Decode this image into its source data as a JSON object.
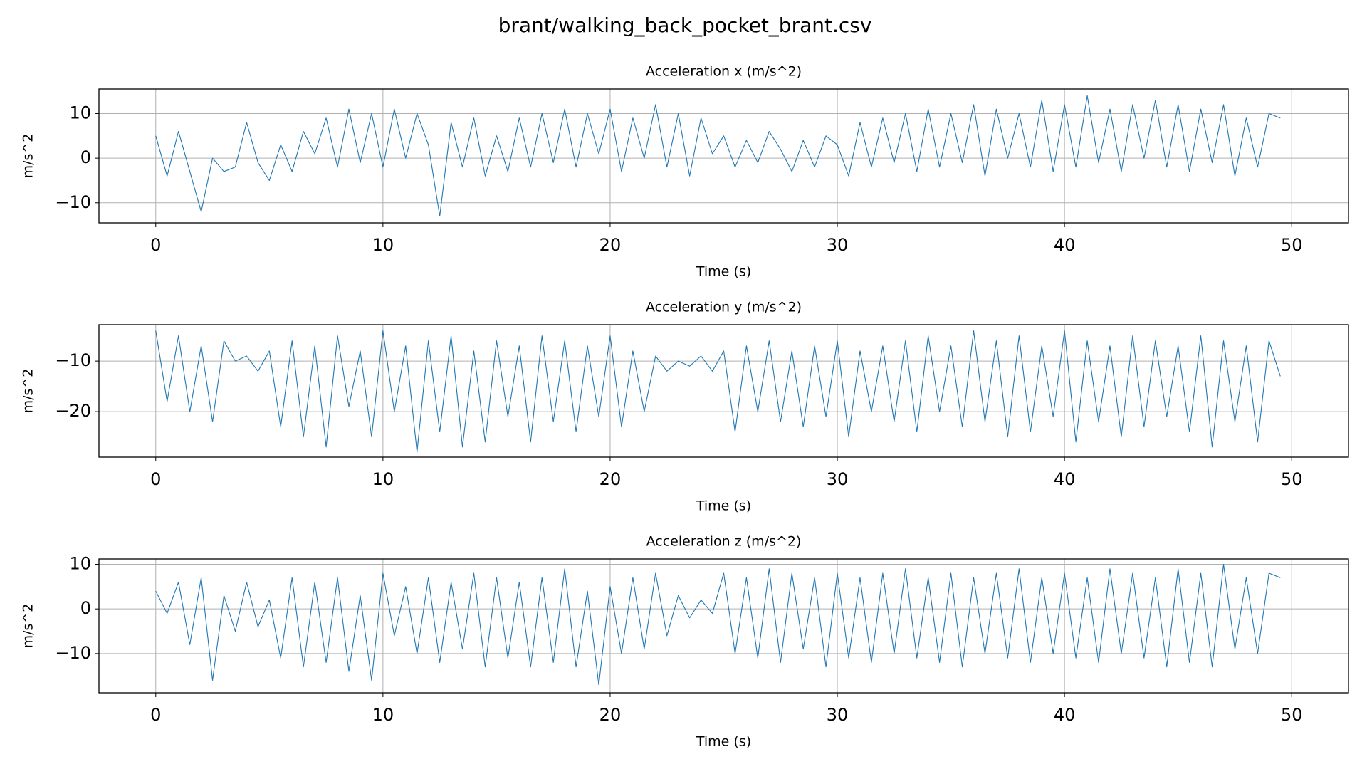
{
  "title": "brant/walking_back_pocket_brant.csv",
  "chart_data": [
    {
      "type": "line",
      "title": "Acceleration x (m/s^2)",
      "x_label": "Time (s)",
      "y_label": "m/s^2",
      "x": [
        0,
        0.5,
        1,
        1.5,
        2,
        2.5,
        3,
        3.5,
        4,
        4.5,
        5,
        5.5,
        6,
        6.5,
        7,
        7.5,
        8,
        8.5,
        9,
        9.5,
        10,
        10.5,
        11,
        11.5,
        12,
        12.5,
        13,
        13.5,
        14,
        14.5,
        15,
        15.5,
        16,
        16.5,
        17,
        17.5,
        18,
        18.5,
        19,
        19.5,
        20,
        20.5,
        21,
        21.5,
        22,
        22.5,
        23,
        23.5,
        24,
        24.5,
        25,
        25.5,
        26,
        26.5,
        27,
        27.5,
        28,
        28.5,
        29,
        29.5,
        30,
        30.5,
        31,
        31.5,
        32,
        32.5,
        33,
        33.5,
        34,
        34.5,
        35,
        35.5,
        36,
        36.5,
        37,
        37.5,
        38,
        38.5,
        39,
        39.5,
        40,
        40.5,
        41,
        41.5,
        42,
        42.5,
        43,
        43.5,
        44,
        44.5,
        45,
        45.5,
        46,
        46.5,
        47,
        47.5,
        48,
        48.5,
        49,
        49.5
      ],
      "series": [
        {
          "color": "#1f77b4",
          "values": [
            5,
            -4,
            6,
            -3,
            -12,
            0,
            -3,
            -2,
            8,
            -1,
            -5,
            3,
            -3,
            6,
            1,
            9,
            -2,
            11,
            -1,
            10,
            -2,
            11,
            0,
            10,
            3,
            -13,
            8,
            -2,
            9,
            -4,
            5,
            -3,
            9,
            -2,
            10,
            -1,
            11,
            -2,
            10,
            1,
            11,
            -3,
            9,
            0,
            12,
            -2,
            10,
            -4,
            9,
            1,
            5,
            -2,
            4,
            -1,
            6,
            2,
            -3,
            4,
            -2,
            5,
            3,
            -4,
            8,
            -2,
            9,
            -1,
            10,
            -3,
            11,
            -2,
            10,
            -1,
            12,
            -4,
            11,
            0,
            10,
            -2,
            13,
            -3,
            12,
            -2,
            14,
            -1,
            11,
            -3,
            12,
            0,
            13,
            -2,
            12,
            -3,
            11,
            -1,
            12,
            -4,
            9,
            -2,
            10,
            9
          ]
        }
      ],
      "xlim": [
        -2.5,
        52.5
      ],
      "xticks": [
        0,
        10,
        20,
        30,
        40,
        50
      ],
      "ylim": [
        -14.5,
        15.5
      ],
      "yticks": [
        {
          "value": -10,
          "label": "−10"
        },
        0,
        10
      ],
      "grid": true
    },
    {
      "type": "line",
      "title": "Acceleration y (m/s^2)",
      "x_label": "Time (s)",
      "y_label": "m/s^2",
      "x": [
        0,
        0.5,
        1,
        1.5,
        2,
        2.5,
        3,
        3.5,
        4,
        4.5,
        5,
        5.5,
        6,
        6.5,
        7,
        7.5,
        8,
        8.5,
        9,
        9.5,
        10,
        10.5,
        11,
        11.5,
        12,
        12.5,
        13,
        13.5,
        14,
        14.5,
        15,
        15.5,
        16,
        16.5,
        17,
        17.5,
        18,
        18.5,
        19,
        19.5,
        20,
        20.5,
        21,
        21.5,
        22,
        22.5,
        23,
        23.5,
        24,
        24.5,
        25,
        25.5,
        26,
        26.5,
        27,
        27.5,
        28,
        28.5,
        29,
        29.5,
        30,
        30.5,
        31,
        31.5,
        32,
        32.5,
        33,
        33.5,
        34,
        34.5,
        35,
        35.5,
        36,
        36.5,
        37,
        37.5,
        38,
        38.5,
        39,
        39.5,
        40,
        40.5,
        41,
        41.5,
        42,
        42.5,
        43,
        43.5,
        44,
        44.5,
        45,
        45.5,
        46,
        46.5,
        47,
        47.5,
        48,
        48.5,
        49,
        49.5
      ],
      "series": [
        {
          "color": "#1f77b4",
          "values": [
            -4,
            -18,
            -5,
            -20,
            -7,
            -22,
            -6,
            -10,
            -9,
            -12,
            -8,
            -23,
            -6,
            -25,
            -7,
            -27,
            -5,
            -19,
            -8,
            -25,
            -4,
            -20,
            -7,
            -28,
            -6,
            -24,
            -5,
            -27,
            -8,
            -26,
            -6,
            -21,
            -7,
            -26,
            -5,
            -22,
            -6,
            -24,
            -7,
            -21,
            -5,
            -23,
            -8,
            -20,
            -9,
            -12,
            -10,
            -11,
            -9,
            -12,
            -8,
            -24,
            -7,
            -20,
            -6,
            -22,
            -8,
            -23,
            -7,
            -21,
            -6,
            -25,
            -8,
            -20,
            -7,
            -22,
            -6,
            -24,
            -5,
            -20,
            -7,
            -23,
            -4,
            -22,
            -6,
            -25,
            -5,
            -24,
            -7,
            -21,
            -4,
            -26,
            -6,
            -22,
            -7,
            -25,
            -5,
            -23,
            -6,
            -21,
            -7,
            -24,
            -5,
            -27,
            -6,
            -22,
            -7,
            -26,
            -6,
            -13
          ]
        }
      ],
      "xlim": [
        -2.5,
        52.5
      ],
      "xticks": [
        0,
        10,
        20,
        30,
        40,
        50
      ],
      "ylim": [
        -29,
        -2.8
      ],
      "yticks": [
        {
          "value": -20,
          "label": "−20"
        },
        {
          "value": -10,
          "label": "−10"
        }
      ],
      "grid": true
    },
    {
      "type": "line",
      "title": "Acceleration z (m/s^2)",
      "x_label": "Time (s)",
      "y_label": "m/s^2",
      "x": [
        0,
        0.5,
        1,
        1.5,
        2,
        2.5,
        3,
        3.5,
        4,
        4.5,
        5,
        5.5,
        6,
        6.5,
        7,
        7.5,
        8,
        8.5,
        9,
        9.5,
        10,
        10.5,
        11,
        11.5,
        12,
        12.5,
        13,
        13.5,
        14,
        14.5,
        15,
        15.5,
        16,
        16.5,
        17,
        17.5,
        18,
        18.5,
        19,
        19.5,
        20,
        20.5,
        21,
        21.5,
        22,
        22.5,
        23,
        23.5,
        24,
        24.5,
        25,
        25.5,
        26,
        26.5,
        27,
        27.5,
        28,
        28.5,
        29,
        29.5,
        30,
        30.5,
        31,
        31.5,
        32,
        32.5,
        33,
        33.5,
        34,
        34.5,
        35,
        35.5,
        36,
        36.5,
        37,
        37.5,
        38,
        38.5,
        39,
        39.5,
        40,
        40.5,
        41,
        41.5,
        42,
        42.5,
        43,
        43.5,
        44,
        44.5,
        45,
        45.5,
        46,
        46.5,
        47,
        47.5,
        48,
        48.5,
        49,
        49.5
      ],
      "series": [
        {
          "color": "#1f77b4",
          "values": [
            4,
            -1,
            6,
            -8,
            7,
            -16,
            3,
            -5,
            6,
            -4,
            2,
            -11,
            7,
            -13,
            6,
            -12,
            7,
            -14,
            3,
            -16,
            8,
            -6,
            5,
            -10,
            7,
            -12,
            6,
            -9,
            8,
            -13,
            7,
            -11,
            6,
            -13,
            7,
            -12,
            9,
            -13,
            4,
            -17,
            5,
            -10,
            7,
            -9,
            8,
            -6,
            3,
            -2,
            2,
            -1,
            8,
            -10,
            7,
            -11,
            9,
            -12,
            8,
            -9,
            7,
            -13,
            8,
            -11,
            7,
            -12,
            8,
            -10,
            9,
            -11,
            7,
            -12,
            8,
            -13,
            7,
            -10,
            8,
            -11,
            9,
            -12,
            7,
            -10,
            8,
            -11,
            7,
            -12,
            9,
            -10,
            8,
            -11,
            7,
            -13,
            9,
            -12,
            8,
            -13,
            10,
            -9,
            7,
            -10,
            8,
            7
          ]
        }
      ],
      "xlim": [
        -2.5,
        52.5
      ],
      "xticks": [
        0,
        10,
        20,
        30,
        40,
        50
      ],
      "ylim": [
        -18.8,
        11.2
      ],
      "yticks": [
        {
          "value": -10,
          "label": "−10"
        },
        0,
        10
      ],
      "grid": true
    }
  ]
}
